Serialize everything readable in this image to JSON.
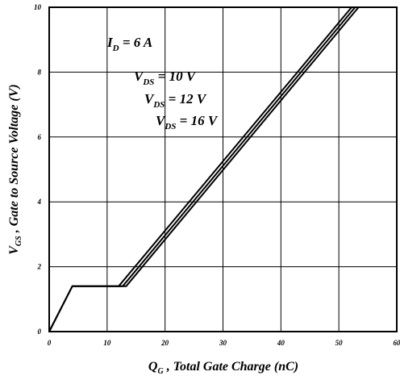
{
  "chart_data": {
    "type": "line",
    "title": "",
    "xlabel": {
      "main": "Q",
      "sub": "G",
      "rest": " , Total Gate Charge (nC)"
    },
    "ylabel": {
      "main": "V",
      "sub": "GS",
      "rest": " , Gate to Source Voltage (V)"
    },
    "xlim": [
      0,
      60
    ],
    "ylim": [
      0,
      10
    ],
    "xticks": [
      "0",
      "10",
      "20",
      "30",
      "40",
      "50",
      "60"
    ],
    "yticks": [
      "0",
      "2",
      "4",
      "6",
      "8",
      "10"
    ],
    "grid": true,
    "annotations": [
      {
        "main": "I",
        "sub": "D",
        "rest": " = 6 A"
      },
      {
        "main": "V",
        "sub": "DS",
        "rest": " = 10 V"
      },
      {
        "main": "V",
        "sub": "DS",
        "rest": " = 12 V"
      },
      {
        "main": "V",
        "sub": "DS",
        "rest": " = 16 V"
      }
    ],
    "series": [
      {
        "name": "V DS = 10 V",
        "x": [
          0,
          4,
          12,
          52.2
        ],
        "y": [
          0,
          1.4,
          1.4,
          10
        ]
      },
      {
        "name": "V DS = 12 V",
        "x": [
          0,
          4,
          12.7,
          52.8
        ],
        "y": [
          0,
          1.4,
          1.4,
          10
        ]
      },
      {
        "name": "V DS = 16 V",
        "x": [
          0,
          4,
          13.3,
          53.4
        ],
        "y": [
          0,
          1.4,
          1.4,
          10
        ]
      }
    ]
  }
}
